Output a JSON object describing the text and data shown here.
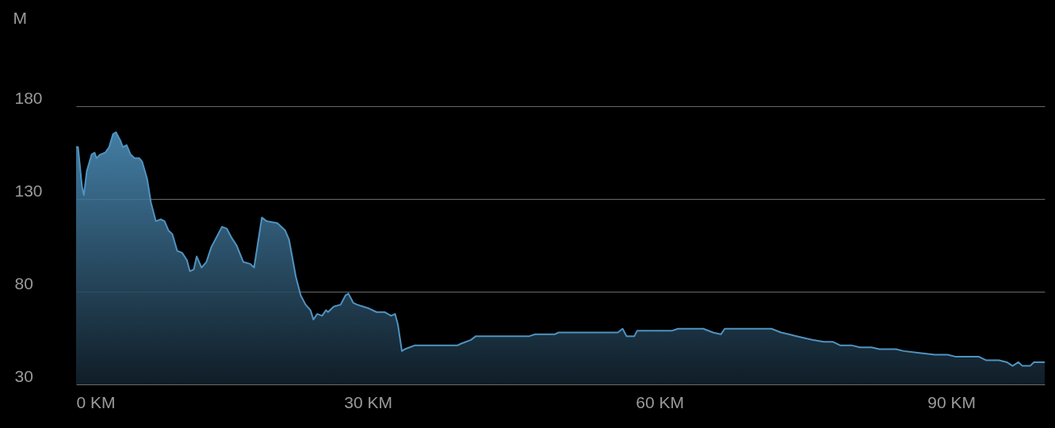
{
  "chart_data": {
    "type": "area",
    "ylabel": "M",
    "x": [
      0,
      0.2,
      0.6,
      0.8,
      1.1,
      1.6,
      1.9,
      2.1,
      2.5,
      3.0,
      3.4,
      3.8,
      4.1,
      4.6,
      4.8,
      5.2,
      5.6,
      6.0,
      6.5,
      6.8,
      7.3,
      7.7,
      8.2,
      8.7,
      9.1,
      9.5,
      9.9,
      10.4,
      10.9,
      11.4,
      11.7,
      12.1,
      12.4,
      12.9,
      13.4,
      13.9,
      15.0,
      15.5,
      16.0,
      16.5,
      17.2,
      17.9,
      18.3,
      19.1,
      19.6,
      20.7,
      21.5,
      21.9,
      22.6,
      23.1,
      23.6,
      24.1,
      24.4,
      24.8,
      25.3,
      25.7,
      25.9,
      26.5,
      27.2,
      27.7,
      28.0,
      28.5,
      28.9,
      29.5,
      30.1,
      30.9,
      31.7,
      32.4,
      32.8,
      33.1,
      33.5,
      33.8,
      34.3,
      34.8,
      38.6,
      39.2,
      39.6,
      40.6,
      41.1,
      46.6,
      47.2,
      49.2,
      49.6,
      55.7,
      56.2,
      56.6,
      57.4,
      57.7,
      61.3,
      61.9,
      64.5,
      65.5,
      66.3,
      66.7,
      67.2,
      71.5,
      72.5,
      73.3,
      74.1,
      74.9,
      75.7,
      76.9,
      77.8,
      78.6,
      79.8,
      80.6,
      81.8,
      82.6,
      84.3,
      85.1,
      86.7,
      88.3,
      89.6,
      90.4,
      92.8,
      93.6,
      94.9,
      95.7,
      96.3,
      96.9,
      97.3,
      98.1,
      98.5,
      99.3,
      99.6
    ],
    "series": [
      {
        "color": "#4f93c0",
        "values": [
          158,
          158,
          137,
          132,
          145,
          154,
          155,
          152,
          154,
          155,
          158,
          165,
          166,
          161,
          158,
          159,
          154,
          152,
          152,
          150,
          141,
          128,
          118,
          119,
          118,
          113,
          111,
          102,
          101,
          97,
          91,
          92,
          99,
          93,
          96,
          104,
          115,
          114,
          109,
          105,
          96,
          95,
          93,
          120,
          118,
          117,
          113,
          108,
          88,
          78,
          73,
          70,
          65,
          68,
          67,
          70,
          69,
          72,
          73,
          78,
          79,
          74,
          73,
          72,
          71,
          69,
          69,
          67,
          68,
          62,
          48,
          49,
          50,
          51,
          51,
          51,
          52,
          54,
          56,
          56,
          57,
          57,
          58,
          58,
          60,
          56,
          56,
          59,
          59,
          60,
          60,
          58,
          57,
          60,
          60,
          60,
          58,
          57,
          56,
          55,
          54,
          53,
          53,
          51,
          51,
          50,
          50,
          49,
          49,
          48,
          47,
          46,
          46,
          45,
          45,
          43,
          43,
          42,
          40,
          42,
          40,
          40,
          42,
          42,
          42
        ]
      }
    ],
    "xlim": [
      0,
      99.6
    ],
    "xticks": [
      {
        "value": 0,
        "label": "0 KM"
      },
      {
        "value": 30,
        "label": "30 KM"
      },
      {
        "value": 60,
        "label": "60 KM"
      },
      {
        "value": 90,
        "label": "90 KM"
      }
    ],
    "ylim": [
      30,
      180
    ],
    "yticks": [
      30,
      80,
      130,
      180
    ],
    "grid": "y"
  }
}
